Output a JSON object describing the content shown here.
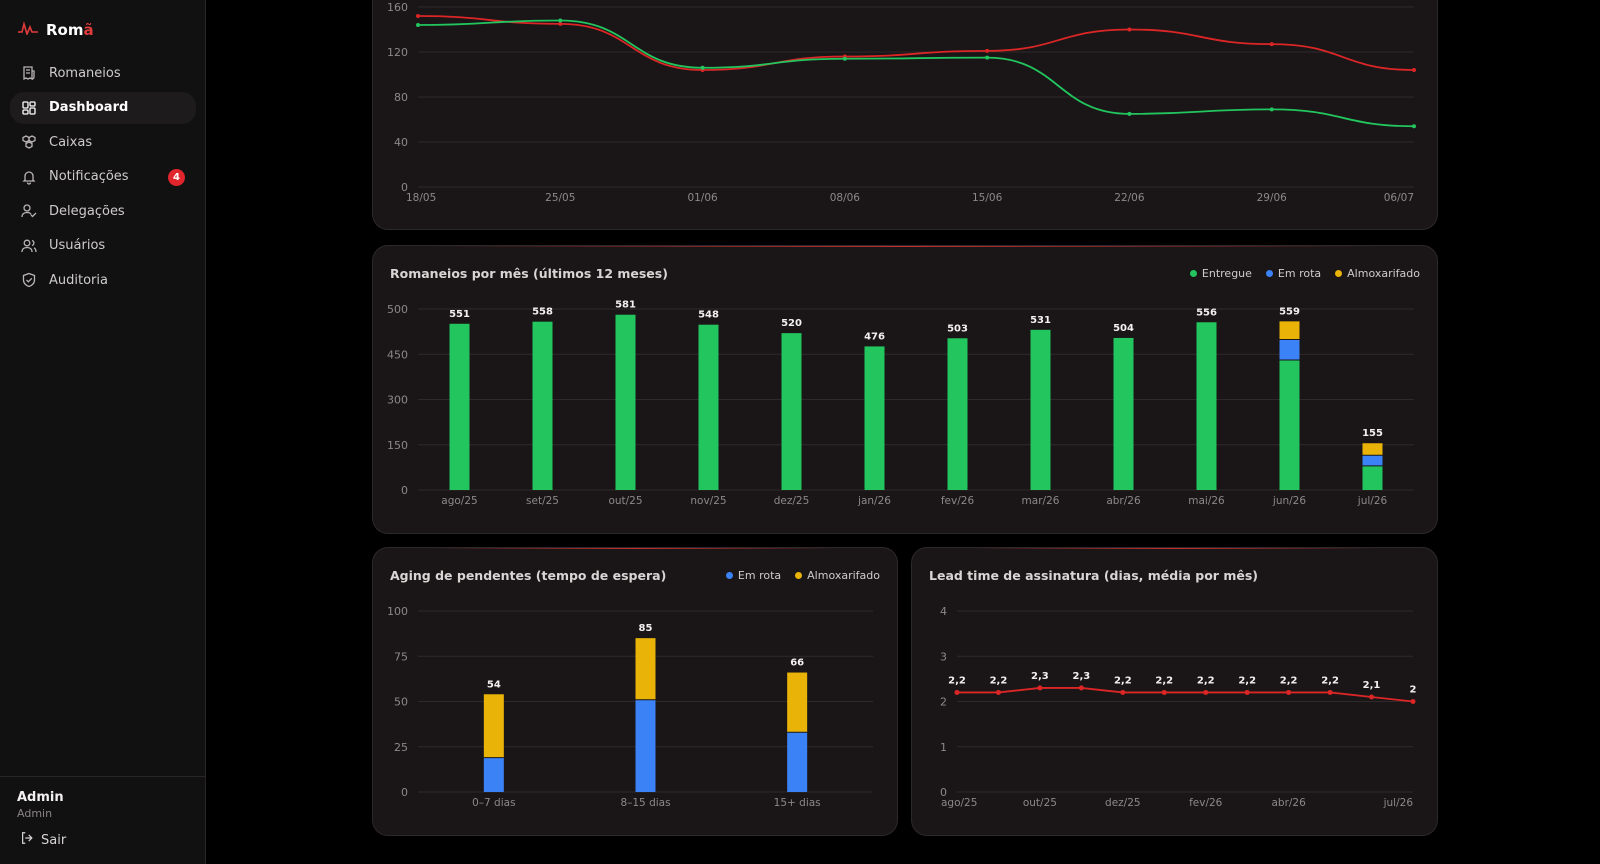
{
  "brand": {
    "name": "Rom",
    "name_accent": "ã"
  },
  "sidebar": {
    "items": [
      {
        "label": "Romaneios",
        "icon": "receipt-icon"
      },
      {
        "label": "Dashboard",
        "icon": "grid-icon",
        "active": true
      },
      {
        "label": "Caixas",
        "icon": "boxes-icon"
      },
      {
        "label": "Notificações",
        "icon": "bell-icon",
        "badge": "4"
      },
      {
        "label": "Delegações",
        "icon": "user-check-icon"
      },
      {
        "label": "Usuários",
        "icon": "users-icon"
      },
      {
        "label": "Auditoria",
        "icon": "shield-icon"
      }
    ],
    "user": {
      "name": "Admin",
      "role": "Admin"
    },
    "logout_label": "Sair"
  },
  "colors": {
    "entregue": "#22c55e",
    "em_rota": "#3b82f6",
    "almoxarifado": "#eab308",
    "line_red": "#dc2626",
    "line_green": "#22c55e"
  },
  "chart_data": [
    {
      "type": "line",
      "x": [
        "18/05",
        "25/05",
        "01/06",
        "08/06",
        "15/06",
        "22/06",
        "29/06",
        "06/07"
      ],
      "ylim": [
        0,
        160
      ],
      "yticks": [
        0,
        40,
        80,
        120,
        160
      ],
      "series": [
        {
          "color": "#dc2626",
          "values": [
            152,
            145,
            104,
            116,
            121,
            140,
            127,
            104
          ]
        },
        {
          "color": "#22c55e",
          "values": [
            144,
            148,
            106,
            114,
            115,
            65,
            69,
            54
          ]
        }
      ]
    },
    {
      "type": "bar",
      "title": "Romaneios por mês (últimos 12 meses)",
      "categories": [
        "ago/25",
        "set/25",
        "out/25",
        "nov/25",
        "dez/25",
        "jan/26",
        "fev/26",
        "mar/26",
        "abr/26",
        "mai/26",
        "jun/26",
        "jul/26"
      ],
      "ylim": [
        0,
        600
      ],
      "yticks": [
        0,
        150,
        300,
        450,
        500
      ],
      "totals": [
        551,
        558,
        581,
        548,
        520,
        476,
        503,
        531,
        504,
        556,
        559,
        155
      ],
      "series": [
        {
          "name": "Entregue",
          "color": "#22c55e",
          "values": [
            551,
            558,
            581,
            548,
            520,
            476,
            503,
            531,
            504,
            556,
            431,
            80
          ]
        },
        {
          "name": "Em rota",
          "color": "#3b82f6",
          "values": [
            0,
            0,
            0,
            0,
            0,
            0,
            0,
            0,
            0,
            0,
            68,
            35
          ]
        },
        {
          "name": "Almoxarifado",
          "color": "#eab308",
          "values": [
            0,
            0,
            0,
            0,
            0,
            0,
            0,
            0,
            0,
            0,
            60,
            40
          ]
        }
      ]
    },
    {
      "type": "bar",
      "title": "Aging de pendentes (tempo de espera)",
      "categories": [
        "0–7 dias",
        "8–15 dias",
        "15+ dias"
      ],
      "ylim": [
        0,
        100
      ],
      "yticks": [
        0,
        25,
        50,
        75,
        100
      ],
      "totals": [
        54,
        85,
        66
      ],
      "series": [
        {
          "name": "Em rota",
          "color": "#3b82f6",
          "values": [
            19,
            51,
            33
          ]
        },
        {
          "name": "Almoxarifado",
          "color": "#eab308",
          "values": [
            35,
            34,
            33
          ]
        }
      ]
    },
    {
      "type": "line",
      "title": "Lead time de assinatura (dias, média por mês)",
      "categories": [
        "ago/25",
        "set/25",
        "out/25",
        "nov/25",
        "dez/25",
        "jan/26",
        "fev/26",
        "mar/26",
        "abr/26",
        "mai/26",
        "jun/26",
        "jul/26"
      ],
      "tick_labels": [
        "ago/25",
        "out/25",
        "dez/25",
        "fev/26",
        "abr/26",
        "jul/26"
      ],
      "ylim": [
        0,
        4
      ],
      "yticks": [
        0,
        1,
        2,
        3,
        4
      ],
      "series": [
        {
          "color": "#dc2626",
          "values": [
            2.2,
            2.2,
            2.3,
            2.3,
            2.2,
            2.2,
            2.2,
            2.2,
            2.2,
            2.2,
            2.1,
            2
          ]
        }
      ],
      "data_labels": [
        "2,2",
        "2,2",
        "2,3",
        "2,3",
        "2,2",
        "2,2",
        "2,2",
        "2,2",
        "2,2",
        "2,2",
        "2,1",
        "2"
      ]
    }
  ]
}
